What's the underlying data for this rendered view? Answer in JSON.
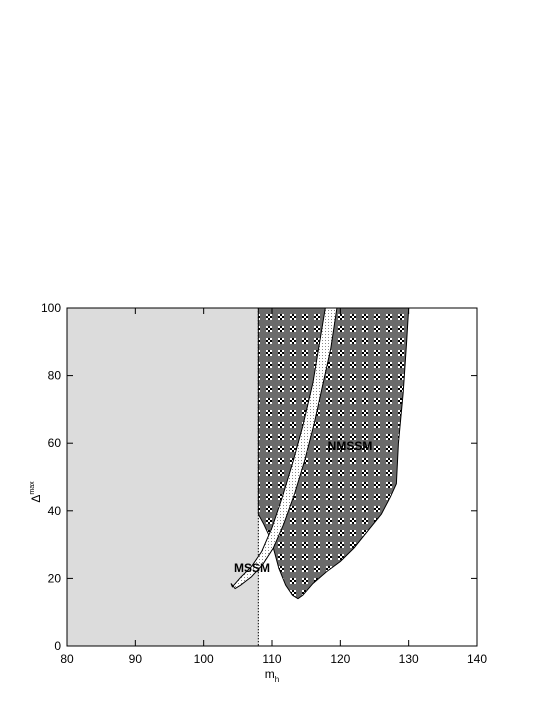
{
  "chart_data": {
    "type": "region",
    "xlabel": {
      "text": "m",
      "sub": "h"
    },
    "ylabel": {
      "text": "Δ",
      "sup": "max"
    },
    "annotations": [
      "NMSSM",
      "MSSM"
    ],
    "xlim": [
      80,
      140
    ],
    "ylim": [
      0,
      100
    ],
    "xticks": [
      80,
      90,
      100,
      110,
      120,
      130,
      140
    ],
    "yticks": [
      0,
      20,
      40,
      60,
      80,
      100
    ],
    "series": [
      {
        "color": "#dcdcdc",
        "border": "dotted",
        "x": [
          80,
          108,
          108,
          80
        ],
        "values": [
          0,
          0,
          100,
          100
        ]
      },
      {
        "name": "NMSSM",
        "color": "#6b6b6b",
        "pattern": "checker",
        "x": [
          108,
          130,
          129.7,
          129.2,
          128.5,
          128.2,
          127.3,
          126,
          124,
          122,
          120,
          118,
          116,
          114.5,
          113.8,
          113,
          112,
          111,
          110.2,
          109.5,
          108.8,
          108
        ],
        "values": [
          100,
          100,
          90,
          75,
          60,
          48,
          44,
          39,
          34,
          29,
          25,
          22,
          18.5,
          15,
          14,
          15,
          18,
          23,
          29,
          33,
          36,
          39
        ]
      },
      {
        "name": "MSSM",
        "color": "#ffffff",
        "pattern": "dots",
        "x": [
          104.2,
          105.5,
          107,
          108.5,
          110,
          111.5,
          113,
          114.5,
          116,
          117.8,
          119.5,
          118.6,
          117.4,
          116.2,
          114.8,
          113.3,
          111.7,
          110.2,
          108.6,
          107,
          105.4,
          104.6,
          104
        ],
        "values": [
          17.5,
          20.5,
          23.5,
          28,
          35,
          44,
          54,
          65,
          78,
          100,
          100,
          88,
          77,
          66,
          55,
          45,
          36,
          29,
          24,
          20.5,
          18,
          17,
          18.5
        ]
      }
    ]
  }
}
